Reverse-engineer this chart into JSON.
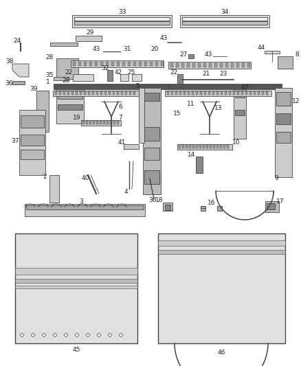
{
  "background_color": "#ffffff",
  "line_color": "#444444",
  "line_width": 0.6,
  "fill_color": "#d8d8d8",
  "label_fontsize": 6.5,
  "label_color": "#222222",
  "parts_shapes": "encoded_below"
}
